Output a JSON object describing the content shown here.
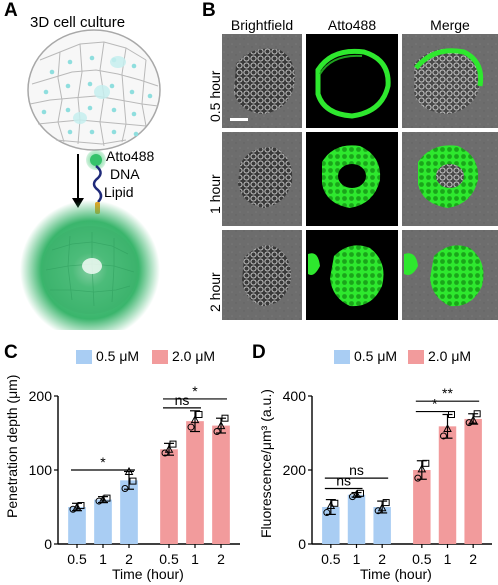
{
  "panelA": {
    "label": "A",
    "title": "3D cell culture",
    "molecule": {
      "dye": "Atto488",
      "dna": "DNA",
      "lipid": "Lipid"
    },
    "colors": {
      "dye": "#35c26a",
      "dna": "#1f2a7a",
      "lipid": "#f3a21c",
      "cell_outline": "#a8a8a8",
      "nucleus": "#8fdede",
      "glow": "#37b86a"
    }
  },
  "panelB": {
    "label": "B",
    "columns": [
      "Brightfield",
      "Atto488",
      "Merge"
    ],
    "rows": [
      "0.5 hour",
      "1 hour",
      "2 hour"
    ],
    "colors": {
      "brightfield": "#6b6b6b",
      "fluor": "#33ff33"
    }
  },
  "panelC": {
    "label": "C",
    "legend": [
      "0.5 μM",
      "2.0 μM"
    ],
    "chart_data": {
      "type": "bar",
      "ylabel": "Penetration depth (μm)",
      "xlabel": "Time (hour)",
      "ylim": [
        0,
        200
      ],
      "yticks": [
        0,
        100,
        200
      ],
      "categories": [
        "0.5",
        "1",
        "2",
        "0.5",
        "1",
        "2"
      ],
      "series": [
        {
          "name": "0.5 μM",
          "color": "#a9cdf3",
          "x": [
            "0.5",
            "1",
            "2"
          ],
          "values": [
            50,
            60,
            86
          ],
          "errors": [
            5,
            4,
            12
          ],
          "points": [
            [
              47,
              52,
              50
            ],
            [
              58,
              62,
              60
            ],
            [
              75,
              85,
              98
            ]
          ]
        },
        {
          "name": "2.0 μM",
          "color": "#f29b9c",
          "x": [
            "0.5",
            "1",
            "2"
          ],
          "values": [
            128,
            166,
            160
          ],
          "errors": [
            8,
            14,
            10
          ],
          "points": [
            [
              123,
              135,
              128
            ],
            [
              158,
              175,
              168
            ],
            [
              152,
              170,
              160
            ]
          ]
        }
      ],
      "annotations": [
        {
          "text": "*",
          "from": 0,
          "to": 2,
          "y": 100
        },
        {
          "text": "ns",
          "from": 3,
          "to": 4,
          "y": 184
        },
        {
          "text": "*",
          "from": 3,
          "to": 5,
          "y": 196
        }
      ]
    }
  },
  "panelD": {
    "label": "D",
    "legend": [
      "0.5 μM",
      "2.0 μM"
    ],
    "chart_data": {
      "type": "bar",
      "ylabel": "Fluorescence/μm³ (a.u.)",
      "xlabel": "Time (hour)",
      "ylim": [
        0,
        400
      ],
      "yticks": [
        0,
        200,
        400
      ],
      "categories": [
        "0.5",
        "1",
        "2",
        "0.5",
        "1",
        "2"
      ],
      "series": [
        {
          "name": "0.5 μM",
          "color": "#a9cdf3",
          "x": [
            "0.5",
            "1",
            "2"
          ],
          "values": [
            100,
            133,
            100
          ],
          "errors": [
            20,
            6,
            16
          ],
          "points": [
            [
              85,
              110,
              104
            ],
            [
              128,
              137,
              134
            ],
            [
              90,
              112,
              98
            ]
          ]
        },
        {
          "name": "2.0 μM",
          "color": "#f29b9c",
          "x": [
            "0.5",
            "1",
            "2"
          ],
          "values": [
            200,
            318,
            338
          ],
          "errors": [
            25,
            32,
            14
          ],
          "points": [
            [
              178,
              218,
              203
            ],
            [
              292,
              350,
              312
            ],
            [
              328,
              352,
              335
            ]
          ]
        }
      ],
      "annotations": [
        {
          "text": "ns",
          "from": 0,
          "to": 1,
          "y": 150
        },
        {
          "text": "ns",
          "from": 0,
          "to": 2,
          "y": 178
        },
        {
          "text": "*",
          "from": 3,
          "to": 4,
          "y": 358
        },
        {
          "text": "**",
          "from": 3,
          "to": 5,
          "y": 386
        }
      ]
    }
  }
}
